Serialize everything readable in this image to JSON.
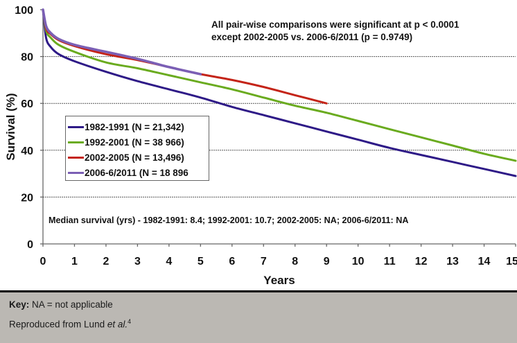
{
  "chart_data": {
    "type": "line",
    "title": "",
    "xlabel": "Years",
    "ylabel": "Survival (%)",
    "xlim": [
      0,
      15
    ],
    "ylim": [
      0,
      100
    ],
    "x_ticks": [
      "0",
      "1",
      "2",
      "3",
      "4",
      "5",
      "6",
      "7",
      "8",
      "9",
      "10",
      "11",
      "12",
      "13",
      "14",
      "15"
    ],
    "y_ticks": [
      "0",
      "20",
      "40",
      "60",
      "80",
      "100"
    ],
    "grid": "horizontal dashed at 20, 40, 60, 80",
    "legend_position": "center-left",
    "series": [
      {
        "name": "1982-1991 (N = 21,342)",
        "color": "#2e1a87",
        "x": [
          0,
          0.1,
          0.25,
          0.5,
          1,
          2,
          3,
          4,
          5,
          6,
          7,
          8,
          9,
          10,
          11,
          12,
          13,
          14,
          15
        ],
        "y": [
          100,
          88,
          84,
          81,
          78,
          73.5,
          69.5,
          66,
          62.5,
          58.5,
          55,
          51.5,
          48,
          44.5,
          41,
          38,
          35,
          32,
          29
        ]
      },
      {
        "name": "1992-2001 (N = 38 966)",
        "color": "#6aab1f",
        "x": [
          0,
          0.1,
          0.25,
          0.5,
          1,
          2,
          3,
          4,
          5,
          6,
          7,
          8,
          9,
          10,
          11,
          12,
          13,
          14,
          15
        ],
        "y": [
          100,
          91,
          88,
          85,
          82,
          77.5,
          75,
          72,
          69,
          66,
          62.5,
          59,
          56,
          52.5,
          49,
          45.5,
          42,
          38.5,
          35.5
        ]
      },
      {
        "name": "2002-2005 (N = 13,496)",
        "color": "#c42418",
        "x": [
          0,
          0.1,
          0.25,
          0.5,
          1,
          2,
          3,
          4,
          5,
          6,
          7,
          8,
          9
        ],
        "y": [
          100,
          92,
          89.5,
          87,
          84.5,
          81,
          78.5,
          75.5,
          72.5,
          70,
          67,
          63.5,
          60
        ]
      },
      {
        "name": "2006-6/2011 (N = 18 896",
        "color": "#7b5fb5",
        "x": [
          0,
          0.1,
          0.25,
          0.5,
          1,
          2,
          3,
          4,
          5
        ],
        "y": [
          100,
          93,
          90,
          87.5,
          85,
          82,
          79,
          75.5,
          72.5
        ]
      }
    ],
    "annotations": {
      "significance_line1": "All pair-wise comparisons were significant at p < 0.0001",
      "significance_line2": "except 2002-2005 vs. 2006-6/2011 (p = 0.9749)",
      "median": "Median survival (yrs) - 1982-1991: 8.4; 1992-2001: 10.7; 2002-2005: NA; 2006-6/2011: NA"
    }
  },
  "footer": {
    "key_label": "Key:",
    "key_text": " NA = not applicable",
    "ref_text": "Reproduced from Lund ",
    "ref_italic": "et al.",
    "ref_sup": "4"
  },
  "colors": {
    "footer_bg": "#bbb8b3",
    "grid": "#555555"
  }
}
